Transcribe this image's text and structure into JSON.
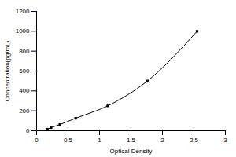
{
  "chart_data": {
    "type": "line",
    "x_label": "Optical Density",
    "y_label": "Concentration(pg/mL)",
    "x": [
      0.1,
      0.17,
      0.23,
      0.37,
      0.62,
      1.13,
      1.76,
      2.55
    ],
    "series": [
      {
        "color": "#000000",
        "marker": "square",
        "line_style": "solid",
        "values": [
          0,
          15.6,
          31.25,
          62.5,
          125,
          250,
          500,
          1000
        ]
      }
    ],
    "xlim": [
      0,
      3
    ],
    "xticks": [
      0,
      0.5,
      1,
      1.5,
      2,
      2.5,
      3
    ],
    "ylim": [
      0,
      1200
    ],
    "yticks": [
      0,
      200,
      400,
      600,
      800,
      1000,
      1200
    ],
    "grid": false
  }
}
